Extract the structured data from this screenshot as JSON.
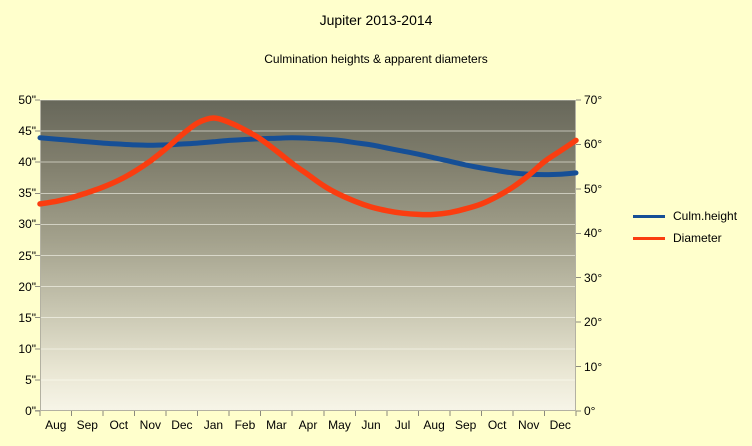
{
  "title": "Jupiter 2013-2014",
  "subtitle": "Culmination heights & apparent diameters",
  "chart_data": {
    "type": "line",
    "title": "Jupiter 2013-2014",
    "subtitle": "Culmination heights & apparent diameters",
    "x_categories": [
      "Aug",
      "Sep",
      "Oct",
      "Nov",
      "Dec",
      "Jan",
      "Feb",
      "Mar",
      "Apr",
      "May",
      "Jun",
      "Jul",
      "Aug",
      "Sep",
      "Oct",
      "Nov",
      "Dec"
    ],
    "x_span": "Aug 2013 - Dec 2014",
    "sampling": "semi-monthly samples, 35 points spanning the 17 labelled months",
    "grid": "horizontal",
    "legend_position": "right",
    "axes": {
      "left": {
        "min": 0,
        "max": 50,
        "step": 5,
        "unit": "\"",
        "tick_labels": [
          "50\"",
          "45\"",
          "40\"",
          "35\"",
          "30\"",
          "25\"",
          "20\"",
          "15\"",
          "10\"",
          "5\"",
          "0\""
        ]
      },
      "right": {
        "min": 0,
        "max": 70,
        "step": 10,
        "unit": "°",
        "tick_labels": [
          "70°",
          "60°",
          "50°",
          "40°",
          "30°",
          "20°",
          "10°",
          "0°"
        ]
      }
    },
    "series": [
      {
        "name": "Culm.height",
        "axis": "right",
        "color": "#164f96",
        "values": [
          61.5,
          61.2,
          60.9,
          60.6,
          60.3,
          60.1,
          59.9,
          59.8,
          59.9,
          60.1,
          60.3,
          60.6,
          60.9,
          61.1,
          61.3,
          61.4,
          61.5,
          61.4,
          61.2,
          60.9,
          60.4,
          59.9,
          59.2,
          58.5,
          57.8,
          57.0,
          56.2,
          55.4,
          54.7,
          54.1,
          53.6,
          53.3,
          53.2,
          53.3,
          53.6
        ]
      },
      {
        "name": "Diameter",
        "axis": "left",
        "color": "#fa3d10",
        "values": [
          33.3,
          33.7,
          34.3,
          35.1,
          36.0,
          37.1,
          38.5,
          40.2,
          42.2,
          44.4,
          46.3,
          47.1,
          46.4,
          45.2,
          43.7,
          41.8,
          39.8,
          38.0,
          36.2,
          34.8,
          33.7,
          32.8,
          32.2,
          31.8,
          31.6,
          31.6,
          31.9,
          32.5,
          33.3,
          34.5,
          36.0,
          37.9,
          40.1,
          41.8,
          43.5
        ]
      }
    ]
  },
  "colors": {
    "background": "#ffffcc",
    "plot_top": "#67675a",
    "plot_bottom": "#f7f5e8",
    "gridline": "#fffff6",
    "axis_line": "#b3b1a2",
    "tick": "#8b8a7d",
    "text": "#000000"
  }
}
